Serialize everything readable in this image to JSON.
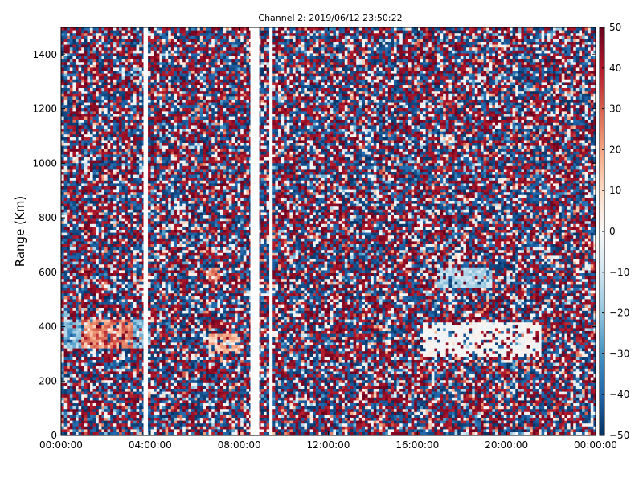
{
  "chart_data": {
    "type": "heatmap",
    "title": "Channel 2: 2019/06/12 23:50:22",
    "xlabel": "",
    "ylabel": "Range (Km)",
    "x_ticks": [
      "00:00:00",
      "04:00:00",
      "08:00:00",
      "12:00:00",
      "16:00:00",
      "20:00:00",
      "00:00:00"
    ],
    "y_ticks": [
      "0",
      "200",
      "400",
      "600",
      "800",
      "1000",
      "1200",
      "1400"
    ],
    "xlim_hours": [
      0,
      24
    ],
    "ylim_km": [
      0,
      1500
    ],
    "colorbar": {
      "ticks": [
        "50",
        "40",
        "30",
        "20",
        "10",
        "0",
        "−10",
        "−20",
        "−30",
        "−40",
        "−50"
      ],
      "range": [
        -50,
        50
      ],
      "colors": [
        "#053061",
        "#2166ac",
        "#4393c3",
        "#92c5de",
        "#d1e5f0",
        "#f7f7f7",
        "#fddbc7",
        "#f4a582",
        "#d6604d",
        "#b2182b",
        "#67001f"
      ]
    },
    "grid": false,
    "data_gaps_hours": [
      [
        3.7,
        3.9
      ],
      [
        8.5,
        8.9
      ],
      [
        9.35,
        9.5
      ]
    ],
    "features": [
      {
        "x_hours": [
          0.1,
          4.0
        ],
        "range_km": [
          320,
          430
        ],
        "values": "mixed positive and negative (red core, blue edges)"
      },
      {
        "x_hours": [
          6.6,
          7.1
        ],
        "range_km": [
          560,
          620
        ],
        "values": "positive (red)"
      },
      {
        "x_hours": [
          6.6,
          8.0
        ],
        "range_km": [
          300,
          370
        ],
        "values": "positive (light red)"
      },
      {
        "x_hours": [
          16.9,
          19.3
        ],
        "range_km": [
          540,
          620
        ],
        "values": "negative (light blue)"
      },
      {
        "x_hours": [
          16.3,
          21.6
        ],
        "range_km": [
          290,
          420
        ],
        "values": "near zero (white streak)"
      }
    ]
  }
}
